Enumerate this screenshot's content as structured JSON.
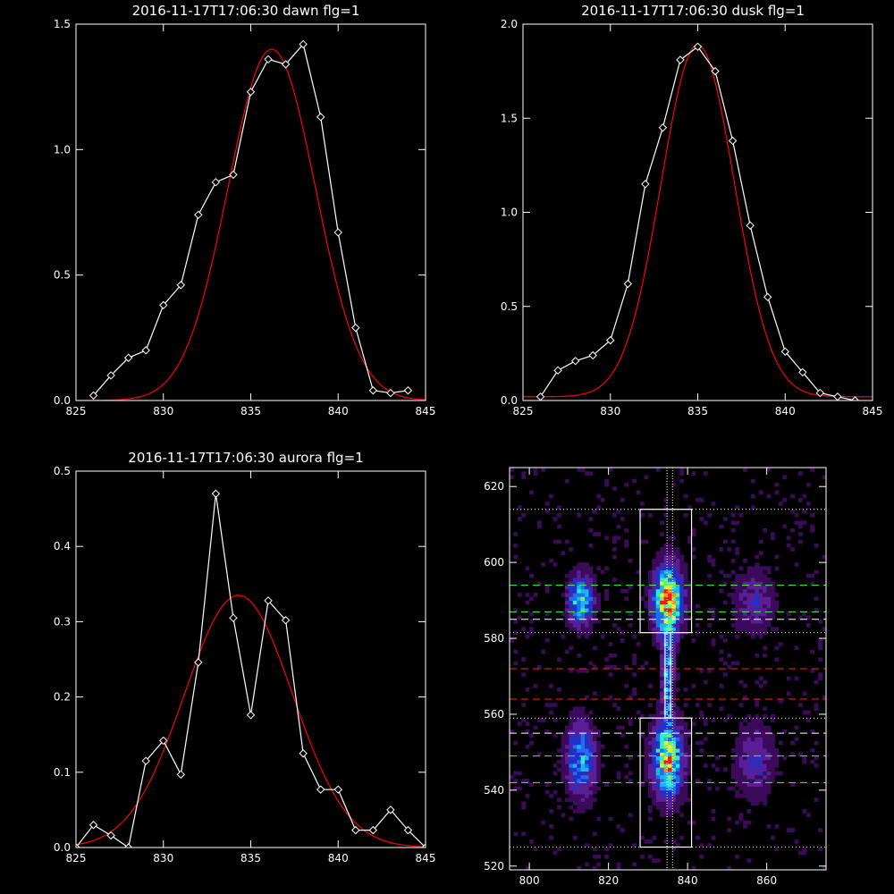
{
  "chart_data": [
    {
      "type": "line",
      "title": "2016-11-17T17:06:30 dawn flg=1",
      "xlabel": "",
      "ylabel": "",
      "xlim": [
        825,
        845
      ],
      "ylim": [
        0,
        1.5
      ],
      "xticks": [
        "825",
        "830",
        "835",
        "840",
        "845"
      ],
      "xtick_values": [
        825,
        830,
        835,
        840,
        845
      ],
      "yticks": [
        "0.0",
        "0.5",
        "1.0",
        "1.5"
      ],
      "ytick_values": [
        0,
        0.5,
        1.0,
        1.5
      ],
      "series": [
        {
          "role": "observed",
          "color": "#ffffff",
          "marker": "diamond",
          "x": [
            826,
            827,
            828,
            829,
            830,
            831,
            832,
            833,
            834,
            835,
            836,
            837,
            838,
            839,
            840,
            841,
            842,
            843,
            844
          ],
          "y": [
            0.02,
            0.1,
            0.17,
            0.2,
            0.38,
            0.46,
            0.74,
            0.87,
            0.9,
            1.23,
            1.36,
            1.34,
            1.42,
            1.13,
            0.67,
            0.29,
            0.04,
            0.03,
            0.04
          ]
        },
        {
          "role": "fit",
          "color": "#ff0000",
          "gaussian": {
            "amplitude": 1.4,
            "center": 836.2,
            "sigma": 2.5,
            "offset": 0.0
          }
        }
      ]
    },
    {
      "type": "line",
      "title": "2016-11-17T17:06:30 dusk flg=1",
      "xlabel": "",
      "ylabel": "",
      "xlim": [
        825,
        845
      ],
      "ylim": [
        0,
        2.0
      ],
      "xticks": [
        "825",
        "830",
        "835",
        "840",
        "845"
      ],
      "xtick_values": [
        825,
        830,
        835,
        840,
        845
      ],
      "yticks": [
        "0.0",
        "0.5",
        "1.0",
        "1.5",
        "2.0"
      ],
      "ytick_values": [
        0,
        0.5,
        1.0,
        1.5,
        2.0
      ],
      "series": [
        {
          "role": "observed",
          "color": "#ffffff",
          "marker": "diamond",
          "x": [
            826,
            827,
            828,
            829,
            830,
            831,
            832,
            833,
            834,
            835,
            836,
            837,
            838,
            839,
            840,
            841,
            842,
            843,
            844
          ],
          "y": [
            0.02,
            0.16,
            0.21,
            0.24,
            0.32,
            0.62,
            1.15,
            1.45,
            1.81,
            1.88,
            1.75,
            1.38,
            0.93,
            0.55,
            0.26,
            0.15,
            0.04,
            0.02,
            0.0
          ]
        },
        {
          "role": "fit",
          "color": "#ff0000",
          "gaussian": {
            "amplitude": 1.87,
            "center": 835.0,
            "sigma": 2.1,
            "offset": 0.02
          }
        }
      ]
    },
    {
      "type": "line",
      "title": "2016-11-17T17:06:30 aurora flg=1",
      "xlabel": "",
      "ylabel": "",
      "xlim": [
        825,
        845
      ],
      "ylim": [
        0,
        0.5
      ],
      "xticks": [
        "825",
        "830",
        "835",
        "840",
        "845"
      ],
      "xtick_values": [
        825,
        830,
        835,
        840,
        845
      ],
      "yticks": [
        "0.0",
        "0.1",
        "0.2",
        "0.3",
        "0.4",
        "0.5"
      ],
      "ytick_values": [
        0,
        0.1,
        0.2,
        0.3,
        0.4,
        0.5
      ],
      "series": [
        {
          "role": "observed",
          "color": "#ffffff",
          "marker": "diamond",
          "x": [
            825,
            826,
            827,
            828,
            829,
            830,
            831,
            832,
            833,
            834,
            835,
            836,
            837,
            838,
            839,
            840,
            841,
            842,
            843,
            844,
            845
          ],
          "y": [
            0.0,
            0.03,
            0.016,
            0.0,
            0.115,
            0.142,
            0.097,
            0.246,
            0.47,
            0.305,
            0.176,
            0.328,
            0.302,
            0.125,
            0.077,
            0.077,
            0.023,
            0.023,
            0.05,
            0.023,
            0.0
          ]
        },
        {
          "role": "fit",
          "color": "#ff0000",
          "gaussian": {
            "amplitude": 0.335,
            "center": 834.3,
            "sigma": 3.1,
            "offset": 0.0
          }
        }
      ]
    },
    {
      "type": "heatmap",
      "title": "",
      "xlabel": "",
      "ylabel": "",
      "xlim": [
        795,
        875
      ],
      "ylim": [
        519,
        625
      ],
      "xticks": [
        "800",
        "820",
        "840",
        "860"
      ],
      "xtick_values": [
        800,
        820,
        840,
        860
      ],
      "yticks": [
        "520",
        "540",
        "560",
        "580",
        "600",
        "620"
      ],
      "ytick_values": [
        520,
        540,
        560,
        580,
        600,
        620
      ],
      "colorscale": [
        "#3c0a5a",
        "#5a1e96",
        "#2030c8",
        "#1e6ef0",
        "#1eb4f0",
        "#28f0c8",
        "#78f064",
        "#e6f028",
        "#ff8c14",
        "#ff1414"
      ],
      "blobs": [
        {
          "x": 835,
          "y": 590,
          "sx": 2.2,
          "sy": 5.5,
          "amp": 1.0
        },
        {
          "x": 835,
          "y": 548,
          "sx": 2.4,
          "sy": 6.0,
          "amp": 0.82
        },
        {
          "x": 813,
          "y": 590,
          "sx": 2.0,
          "sy": 4.0,
          "amp": 0.6
        },
        {
          "x": 813,
          "y": 548,
          "sx": 2.3,
          "sy": 6.0,
          "amp": 0.48
        },
        {
          "x": 857,
          "y": 590,
          "sx": 3.0,
          "sy": 5.0,
          "amp": 0.2
        },
        {
          "x": 857,
          "y": 548,
          "sx": 3.0,
          "sy": 6.0,
          "amp": 0.22
        },
        {
          "x": 835,
          "y": 570,
          "sx": 0.9,
          "sy": 9.0,
          "amp": 0.55
        }
      ],
      "boxes": [
        {
          "x0": 828,
          "x1": 841,
          "y0": 581.5,
          "y1": 614,
          "color": "#ffffff"
        },
        {
          "x0": 828,
          "x1": 841,
          "y0": 525,
          "y1": 559,
          "color": "#ffffff"
        },
        {
          "x0": 834.3,
          "x1": 835.7,
          "y0": 559,
          "y1": 581.5,
          "color": "#ffffff"
        }
      ],
      "hlines_dotted": [
        {
          "y": 614,
          "color": "#ffffff"
        },
        {
          "y": 581.5,
          "color": "#ffffff"
        },
        {
          "y": 559,
          "color": "#ffffff"
        },
        {
          "y": 525,
          "color": "#ffffff"
        }
      ],
      "hlines_dashed": [
        {
          "y": 594,
          "color": "#40ff40"
        },
        {
          "y": 587,
          "color": "#40ff40"
        },
        {
          "y": 585,
          "color": "#ffffff"
        },
        {
          "y": 572,
          "color": "#ff2020"
        },
        {
          "y": 564,
          "color": "#ff2020"
        },
        {
          "y": 555,
          "color": "#ffffff"
        },
        {
          "y": 549,
          "color": "#40ff40"
        },
        {
          "y": 542,
          "color": "#40ff40"
        }
      ],
      "vlines_dotted": [
        {
          "x": 834.8,
          "color": "#ffffff"
        },
        {
          "x": 836.2,
          "color": "#ffffff"
        }
      ]
    }
  ]
}
